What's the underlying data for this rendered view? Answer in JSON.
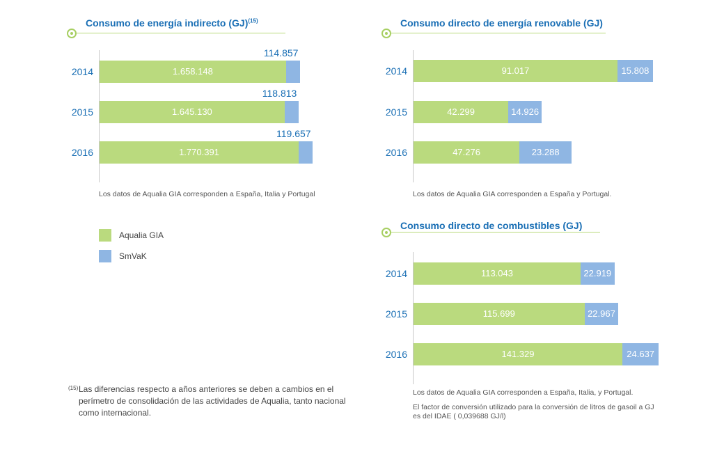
{
  "colors": {
    "aqualia": "#bada7e",
    "smvak": "#8fb6e3",
    "accent": "#1a6fb5"
  },
  "chart_data": [
    {
      "type": "bar",
      "orientation": "horizontal",
      "stacked": true,
      "title": "Consumo de energía indirecto (GJ)",
      "title_sup": "(15)",
      "categories": [
        "2014",
        "2015",
        "2016"
      ],
      "series": [
        {
          "name": "Aqualia GIA",
          "values": [
            1658148,
            1645130,
            1770391
          ],
          "labels": [
            "1.658.148",
            "1.645.130",
            "1.770.391"
          ]
        },
        {
          "name": "SmVaK",
          "values": [
            114857,
            118813,
            119657
          ],
          "labels": [
            "114.857",
            "118.813",
            "119.657"
          ]
        }
      ],
      "note": "Los datos de Aqualia GIA corresponden a España, Italia y Portugal"
    },
    {
      "type": "bar",
      "orientation": "horizontal",
      "stacked": true,
      "title": "Consumo directo de energía renovable (GJ)",
      "categories": [
        "2014",
        "2015",
        "2016"
      ],
      "series": [
        {
          "name": "Aqualia GIA",
          "values": [
            91017,
            42299,
            47276
          ],
          "labels": [
            "91.017",
            "42.299",
            "47.276"
          ]
        },
        {
          "name": "SmVaK",
          "values": [
            15808,
            14926,
            23288
          ],
          "labels": [
            "15.808",
            "14.926",
            "23.288"
          ]
        }
      ],
      "note": "Los datos de Aqualia GIA corresponden a España y Portugal."
    },
    {
      "type": "bar",
      "orientation": "horizontal",
      "stacked": true,
      "title": "Consumo directo de combustibles (GJ)",
      "categories": [
        "2014",
        "2015",
        "2016"
      ],
      "series": [
        {
          "name": "Aqualia GIA",
          "values": [
            113043,
            115699,
            141329
          ],
          "labels": [
            "113.043",
            "115.699",
            "141.329"
          ]
        },
        {
          "name": "SmVaK",
          "values": [
            22919,
            22967,
            24637
          ],
          "labels": [
            "22.919",
            "22.967",
            "24.637"
          ]
        }
      ],
      "note": "Los datos de Aqualia GIA corresponden a España, Italia, y Portugal.",
      "note2": "El factor de conversión utilizado para la conversión de litros de gasoil a GJ",
      "note3": "es del IDAE ( 0,039688 GJ/l)"
    }
  ],
  "legend": [
    {
      "label": "Aqualia GIA",
      "color": "#bada7e"
    },
    {
      "label": "SmVaK",
      "color": "#8fb6e3"
    }
  ],
  "footnote": {
    "marker": "(15)",
    "lines": [
      "Las diferencias respecto a años anteriores se deben a cambios en el",
      "perímetro de consolidación de las actividades de Aqualia, tanto nacional",
      "como internacional."
    ]
  }
}
